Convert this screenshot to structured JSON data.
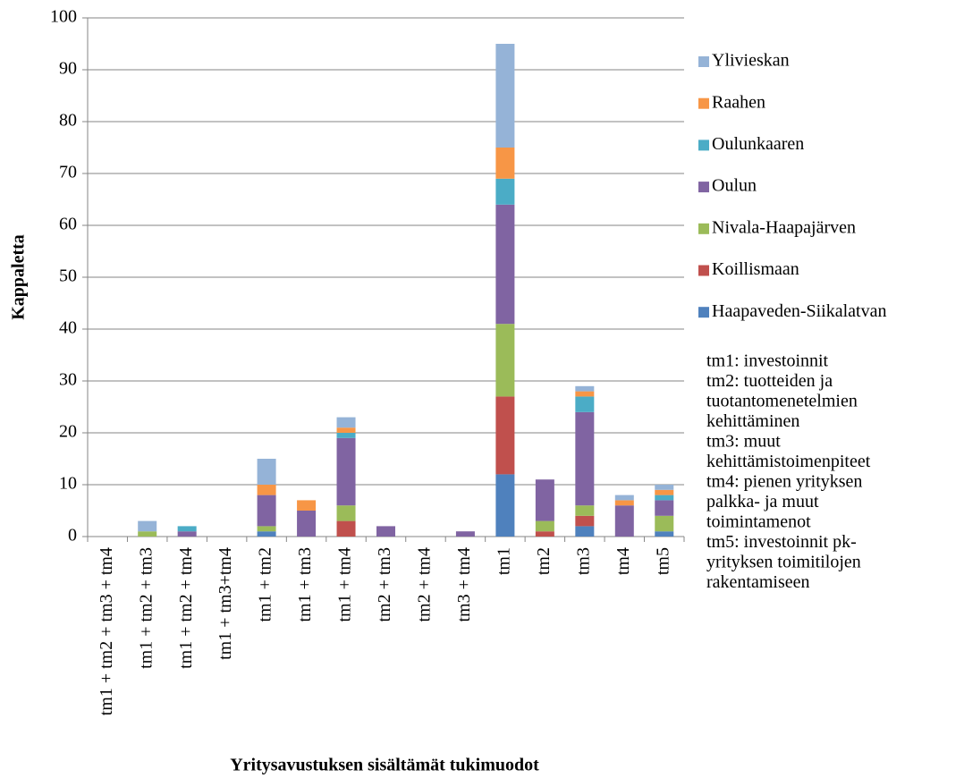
{
  "chart_data": {
    "type": "stacked_bar",
    "x_label": "Yritysavustuksen sisältämät tukimuodot",
    "y_label": "Kappaletta",
    "categories": [
      "tm1 + tm2 + tm3 + tm4",
      "tm1 + tm2 + tm3",
      "tm1 + tm2 + tm4",
      "tm1 + tm3+tm4",
      "tm1 + tm2",
      "tm1 + tm3",
      "tm1 + tm4",
      "tm2 + tm3",
      "tm2 + tm4",
      "tm3 + tm4",
      "tm1",
      "tm2",
      "tm3",
      "tm4",
      "tm5"
    ],
    "series": [
      {
        "name": "Haapaveden-Siikalatvan",
        "color": "#4f81bd",
        "values": [
          0,
          0,
          0,
          0,
          1,
          0,
          0,
          0,
          0,
          0,
          12,
          0,
          2,
          0,
          1
        ]
      },
      {
        "name": "Koillismaan",
        "color": "#c0504d",
        "values": [
          0,
          0,
          0,
          0,
          0,
          0,
          3,
          0,
          0,
          0,
          15,
          1,
          2,
          0,
          0
        ]
      },
      {
        "name": "Nivala-Haapajärven",
        "color": "#9bbb59",
        "values": [
          0,
          1,
          0,
          0,
          1,
          0,
          3,
          0,
          0,
          0,
          14,
          2,
          2,
          0,
          3
        ]
      },
      {
        "name": "Oulun",
        "color": "#8064a2",
        "values": [
          0,
          0,
          1,
          0,
          6,
          5,
          13,
          2,
          0,
          1,
          23,
          8,
          18,
          6,
          3
        ]
      },
      {
        "name": "Oulunkaaren",
        "color": "#4bacc6",
        "values": [
          0,
          0,
          1,
          0,
          0,
          0,
          1,
          0,
          0,
          0,
          5,
          0,
          3,
          0,
          1
        ]
      },
      {
        "name": "Raahen",
        "color": "#f79646",
        "values": [
          0,
          0,
          0,
          0,
          2,
          2,
          1,
          0,
          0,
          0,
          6,
          0,
          1,
          1,
          1
        ]
      },
      {
        "name": "Ylivieskan",
        "color": "#95b3d7",
        "values": [
          0,
          2,
          0,
          0,
          5,
          0,
          2,
          0,
          0,
          0,
          20,
          0,
          1,
          1,
          1
        ]
      }
    ],
    "ylim": [
      0,
      100
    ],
    "yticks": [
      0,
      10,
      20,
      30,
      40,
      50,
      60,
      70,
      80,
      90,
      100
    ],
    "grid": true,
    "notes": [
      "tm1: investoinnit",
      "tm2: tuotteiden ja",
      "tuotantomenetelmien",
      "kehittäminen",
      "tm3: muut",
      "kehittämistoimenpiteet",
      "tm4: pienen yrityksen",
      "palkka- ja muut",
      "toimintamenot",
      "tm5: investoinnit pk-",
      "yrityksen toimitilojen",
      "rakentamiseen"
    ]
  }
}
